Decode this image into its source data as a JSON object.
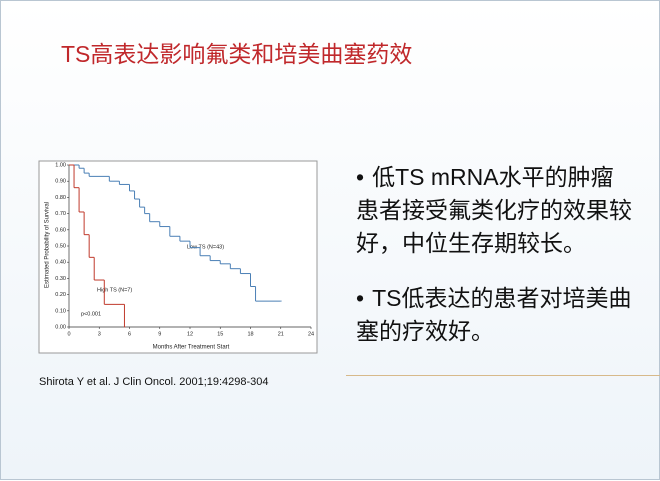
{
  "title": "TS高表达影响氟类和培美曲塞药效",
  "bullets": [
    "低TS mRNA水平的肿瘤患者接受氟类化疗的效果较好，中位生存期较长。",
    "TS低表达的患者对培美曲塞的疗效好。"
  ],
  "citation": "Shirota Y et al. J Clin Oncol. 2001;19:4298-304",
  "chart_data": {
    "type": "line",
    "step": true,
    "x_label": "Months After Treatment Start",
    "y_label": "Estimated Probability of Survival",
    "annotation": "p<0.001",
    "xlim": [
      0,
      24
    ],
    "xticks": [
      0,
      3,
      6,
      9,
      12,
      15,
      18,
      21,
      24
    ],
    "ylim": [
      0,
      1
    ],
    "yticks": [
      {
        "value": 0,
        "label": "0.00"
      },
      {
        "value": 0.1,
        "label": "0.10"
      },
      {
        "value": 0.2,
        "label": "0.20"
      },
      {
        "value": 0.3,
        "label": "0.30"
      },
      {
        "value": 0.4,
        "label": "0.40"
      },
      {
        "value": 0.5,
        "label": "0.50"
      },
      {
        "value": 0.6,
        "label": "0.60"
      },
      {
        "value": 0.7,
        "label": "0.70"
      },
      {
        "value": 0.8,
        "label": "0.80"
      },
      {
        "value": 0.9,
        "label": "0.90"
      },
      {
        "value": 1,
        "label": "1.00"
      }
    ],
    "series": [
      {
        "name": "Low TS (N=43)",
        "color": "#4a7fb5",
        "x": [
          0,
          1,
          1.5,
          2,
          4,
          5,
          6,
          6.5,
          7,
          7.5,
          8,
          9,
          10,
          11,
          12,
          13,
          14,
          15,
          16,
          17,
          18,
          18.5,
          21
        ],
        "values": [
          1,
          0.98,
          0.95,
          0.93,
          0.9,
          0.88,
          0.84,
          0.79,
          0.74,
          0.7,
          0.65,
          0.62,
          0.56,
          0.53,
          0.49,
          0.44,
          0.41,
          0.39,
          0.36,
          0.33,
          0.25,
          0.16,
          0.16
        ]
      },
      {
        "name": "High TS (N=7)",
        "color": "#c0392b",
        "x": [
          0,
          0.5,
          1,
          1.5,
          2,
          2.5,
          3.5,
          5.5
        ],
        "values": [
          1,
          0.86,
          0.71,
          0.57,
          0.43,
          0.29,
          0.14,
          0
        ]
      }
    ]
  }
}
